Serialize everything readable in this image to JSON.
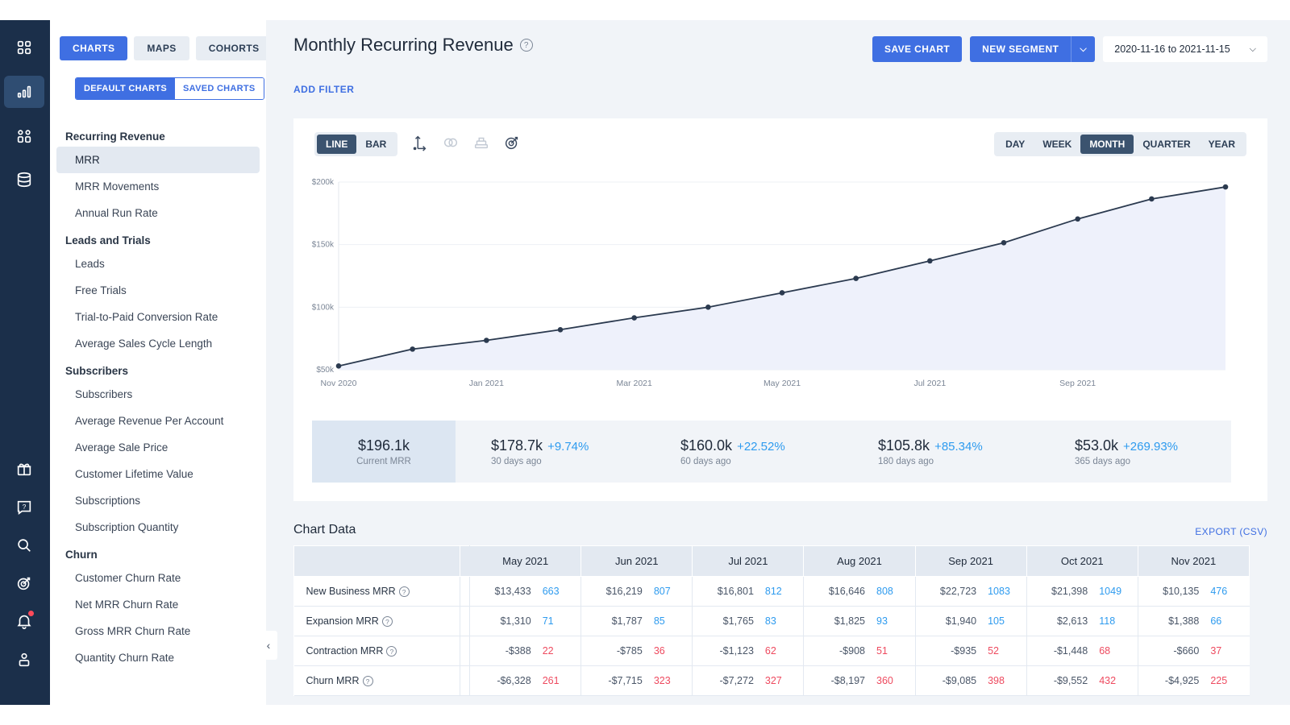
{
  "rail": {
    "items": [
      {
        "icon": "dashboard-grid-icon"
      },
      {
        "icon": "bar-chart-icon",
        "active": true
      },
      {
        "icon": "segments-icon"
      },
      {
        "icon": "database-icon"
      },
      {
        "icon": "gift-icon"
      },
      {
        "icon": "help-box-icon"
      },
      {
        "icon": "search-icon"
      },
      {
        "icon": "target-icon"
      },
      {
        "icon": "bell-icon"
      },
      {
        "icon": "user-icon"
      }
    ]
  },
  "sidebar": {
    "tabs": [
      "CHARTS",
      "MAPS",
      "COHORTS"
    ],
    "subtabs": [
      "DEFAULT CHARTS",
      "SAVED CHARTS"
    ],
    "groups": [
      {
        "title": "Recurring Revenue",
        "items": [
          "MRR",
          "MRR Movements",
          "Annual Run Rate"
        ]
      },
      {
        "title": "Leads and Trials",
        "items": [
          "Leads",
          "Free Trials",
          "Trial-to-Paid Conversion Rate",
          "Average Sales Cycle Length"
        ]
      },
      {
        "title": "Subscribers",
        "items": [
          "Subscribers",
          "Average Revenue Per Account",
          "Average Sale Price",
          "Customer Lifetime Value",
          "Subscriptions",
          "Subscription Quantity"
        ]
      },
      {
        "title": "Churn",
        "items": [
          "Customer Churn Rate",
          "Net MRR Churn Rate",
          "Gross MRR Churn Rate",
          "Quantity Churn Rate"
        ]
      }
    ],
    "active_item": "MRR"
  },
  "header": {
    "title": "Monthly Recurring Revenue",
    "save_chart": "SAVE CHART",
    "new_segment": "NEW SEGMENT",
    "date_range": "2020-11-16 to 2021-11-15",
    "add_filter": "ADD FILTER"
  },
  "chart_controls": {
    "types": [
      "LINE",
      "BAR"
    ],
    "active_type": "LINE",
    "periods": [
      "DAY",
      "WEEK",
      "MONTH",
      "QUARTER",
      "YEAR"
    ],
    "active_period": "MONTH"
  },
  "chart_data": {
    "type": "area",
    "x": [
      "Nov 2020",
      "Dec 2020",
      "Jan 2021",
      "Feb 2021",
      "Mar 2021",
      "Apr 2021",
      "May 2021",
      "Jun 2021",
      "Jul 2021",
      "Aug 2021",
      "Sep 2021",
      "Oct 2021",
      "Nov 2021"
    ],
    "x_tick_labels": [
      "Nov 2020",
      "Jan 2021",
      "Mar 2021",
      "May 2021",
      "Jul 2021",
      "Sep 2021"
    ],
    "series": [
      {
        "values": [
          53.0,
          66.5,
          73.5,
          82.0,
          91.5,
          100.0,
          111.5,
          123.0,
          137.0,
          151.5,
          170.5,
          186.5,
          196.1
        ]
      }
    ],
    "y_ticks": [
      "$50k",
      "$100k",
      "$150k",
      "$200k"
    ],
    "ylim": [
      50,
      200
    ],
    "units": "$k",
    "grid": true,
    "line_color": "#2b3a4f",
    "fill_color": "#eef1fb"
  },
  "stats": [
    {
      "value": "$196.1k",
      "label": "Current MRR"
    },
    {
      "value": "$178.7k",
      "change": "+9.74%",
      "label": "30 days ago"
    },
    {
      "value": "$160.0k",
      "change": "+22.52%",
      "label": "60 days ago"
    },
    {
      "value": "$105.8k",
      "change": "+85.34%",
      "label": "180 days ago"
    },
    {
      "value": "$53.0k",
      "change": "+269.93%",
      "label": "365 days ago"
    }
  ],
  "table": {
    "title": "Chart Data",
    "export": "EXPORT (CSV)",
    "columns": [
      "May 2021",
      "Jun 2021",
      "Jul 2021",
      "Aug 2021",
      "Sep 2021",
      "Oct 2021",
      "Nov 2021"
    ],
    "rows": [
      {
        "name": "New Business MRR",
        "negative": false,
        "cells": [
          [
            "$13,433",
            "663"
          ],
          [
            "$16,219",
            "807"
          ],
          [
            "$16,801",
            "812"
          ],
          [
            "$16,646",
            "808"
          ],
          [
            "$22,723",
            "1083"
          ],
          [
            "$21,398",
            "1049"
          ],
          [
            "$10,135",
            "476"
          ]
        ]
      },
      {
        "name": "Expansion MRR",
        "negative": false,
        "cells": [
          [
            "$1,310",
            "71"
          ],
          [
            "$1,787",
            "85"
          ],
          [
            "$1,765",
            "83"
          ],
          [
            "$1,825",
            "93"
          ],
          [
            "$1,940",
            "105"
          ],
          [
            "$2,613",
            "118"
          ],
          [
            "$1,388",
            "66"
          ]
        ]
      },
      {
        "name": "Contraction MRR",
        "negative": true,
        "cells": [
          [
            "-$388",
            "22"
          ],
          [
            "-$785",
            "36"
          ],
          [
            "-$1,123",
            "62"
          ],
          [
            "-$908",
            "51"
          ],
          [
            "-$935",
            "52"
          ],
          [
            "-$1,448",
            "68"
          ],
          [
            "-$660",
            "37"
          ]
        ]
      },
      {
        "name": "Churn MRR",
        "negative": true,
        "cells": [
          [
            "-$6,328",
            "261"
          ],
          [
            "-$7,715",
            "323"
          ],
          [
            "-$7,272",
            "327"
          ],
          [
            "-$8,197",
            "360"
          ],
          [
            "-$9,085",
            "398"
          ],
          [
            "-$9,552",
            "432"
          ],
          [
            "-$4,925",
            "225"
          ]
        ]
      }
    ]
  },
  "colors": {
    "accent": "#3f6fe2",
    "positive": "#2e9bef",
    "negative": "#ee4a5f",
    "rail": "#1b2f4a"
  }
}
